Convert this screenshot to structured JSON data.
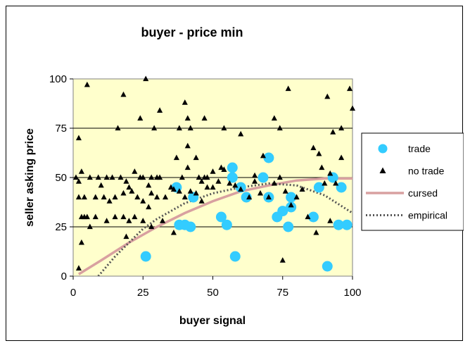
{
  "chart_data": {
    "type": "scatter",
    "title": "buyer - price min",
    "xlabel": "buyer signal",
    "ylabel": "seller asking price",
    "xlim": [
      0,
      100
    ],
    "ylim": [
      0,
      100
    ],
    "xticks": [
      "0",
      "25",
      "50",
      "75",
      "100"
    ],
    "yticks": [
      "0",
      "25",
      "50",
      "75",
      "100"
    ],
    "gridlines": "horizontal",
    "plot_background": "#FFFFCC",
    "legend": {
      "position": "right",
      "entries": [
        "trade",
        "no trade",
        "cursed",
        "empirical"
      ]
    },
    "series": [
      {
        "name": "trade",
        "kind": "points",
        "marker": "circle",
        "color": "#33CCFF",
        "points": [
          [
            26,
            10
          ],
          [
            37,
            45
          ],
          [
            38,
            26
          ],
          [
            40,
            26
          ],
          [
            42,
            25
          ],
          [
            43,
            40
          ],
          [
            53,
            30
          ],
          [
            55,
            26
          ],
          [
            57,
            55
          ],
          [
            57,
            50
          ],
          [
            58,
            10
          ],
          [
            60,
            45
          ],
          [
            62,
            40
          ],
          [
            68,
            50
          ],
          [
            70,
            60
          ],
          [
            70,
            40
          ],
          [
            73,
            30
          ],
          [
            75,
            33
          ],
          [
            77,
            25
          ],
          [
            78,
            35
          ],
          [
            78,
            40
          ],
          [
            86,
            30
          ],
          [
            88,
            45
          ],
          [
            91,
            5
          ],
          [
            93,
            50
          ],
          [
            95,
            26
          ],
          [
            96,
            45
          ],
          [
            98,
            26
          ]
        ]
      },
      {
        "name": "no trade",
        "kind": "points",
        "marker": "triangle",
        "color": "#000000",
        "points": [
          [
            5,
            97
          ],
          [
            18,
            92
          ],
          [
            26,
            100
          ],
          [
            31,
            84
          ],
          [
            41,
            80
          ],
          [
            40,
            88
          ],
          [
            47,
            80
          ],
          [
            77,
            95
          ],
          [
            91,
            91
          ],
          [
            99,
            95
          ],
          [
            100,
            85
          ],
          [
            2,
            70
          ],
          [
            16,
            75
          ],
          [
            24,
            80
          ],
          [
            29,
            75
          ],
          [
            38,
            75
          ],
          [
            41,
            66
          ],
          [
            42,
            75
          ],
          [
            54,
            75
          ],
          [
            60,
            72
          ],
          [
            72,
            80
          ],
          [
            74,
            75
          ],
          [
            93,
            73
          ],
          [
            96,
            75
          ],
          [
            1,
            50
          ],
          [
            2,
            48
          ],
          [
            3,
            53
          ],
          [
            6,
            50
          ],
          [
            9,
            50
          ],
          [
            12,
            50
          ],
          [
            14,
            50
          ],
          [
            17,
            50
          ],
          [
            19,
            48
          ],
          [
            22,
            53
          ],
          [
            24,
            50
          ],
          [
            25,
            50
          ],
          [
            27,
            46
          ],
          [
            28,
            50
          ],
          [
            30,
            50
          ],
          [
            31,
            50
          ],
          [
            37,
            60
          ],
          [
            39,
            50
          ],
          [
            41,
            55
          ],
          [
            44,
            60
          ],
          [
            45,
            50
          ],
          [
            46,
            48
          ],
          [
            47,
            50
          ],
          [
            48,
            50
          ],
          [
            50,
            53
          ],
          [
            53,
            55
          ],
          [
            2,
            40
          ],
          [
            4,
            40
          ],
          [
            5,
            30
          ],
          [
            8,
            40
          ],
          [
            10,
            46
          ],
          [
            11,
            40
          ],
          [
            13,
            38
          ],
          [
            15,
            40
          ],
          [
            18,
            42
          ],
          [
            20,
            45
          ],
          [
            21,
            43
          ],
          [
            23,
            40
          ],
          [
            25,
            38
          ],
          [
            27,
            35
          ],
          [
            28,
            42
          ],
          [
            30,
            40
          ],
          [
            33,
            40
          ],
          [
            35,
            45
          ],
          [
            36,
            44
          ],
          [
            38,
            43
          ],
          [
            40,
            40
          ],
          [
            42,
            43
          ],
          [
            44,
            42
          ],
          [
            46,
            38
          ],
          [
            48,
            45
          ],
          [
            50,
            45
          ],
          [
            52,
            48
          ],
          [
            56,
            47
          ],
          [
            58,
            46
          ],
          [
            60,
            44
          ],
          [
            63,
            40
          ],
          [
            65,
            48
          ],
          [
            67,
            42
          ],
          [
            70,
            40
          ],
          [
            72,
            47
          ],
          [
            74,
            50
          ],
          [
            76,
            43
          ],
          [
            78,
            36
          ],
          [
            80,
            40
          ],
          [
            82,
            44
          ],
          [
            84,
            30
          ],
          [
            86,
            65
          ],
          [
            88,
            62
          ],
          [
            90,
            47
          ],
          [
            92,
            52
          ],
          [
            94,
            47
          ],
          [
            3,
            30
          ],
          [
            4,
            30
          ],
          [
            6,
            25
          ],
          [
            8,
            30
          ],
          [
            12,
            28
          ],
          [
            15,
            30
          ],
          [
            18,
            30
          ],
          [
            20,
            28
          ],
          [
            22,
            30
          ],
          [
            25,
            28
          ],
          [
            28,
            25
          ],
          [
            32,
            28
          ],
          [
            36,
            22
          ],
          [
            19,
            20
          ],
          [
            2,
            4
          ],
          [
            3,
            17
          ],
          [
            75,
            8
          ],
          [
            87,
            22
          ],
          [
            89,
            55
          ],
          [
            92,
            28
          ],
          [
            96,
            60
          ],
          [
            65,
            51
          ],
          [
            68,
            61
          ],
          [
            54,
            54
          ]
        ]
      },
      {
        "name": "cursed",
        "kind": "line",
        "style": "solid",
        "color": "#D8A0A0",
        "points": [
          [
            2,
            1
          ],
          [
            10,
            8
          ],
          [
            20,
            17
          ],
          [
            30,
            25
          ],
          [
            40,
            32
          ],
          [
            50,
            38
          ],
          [
            60,
            43
          ],
          [
            70,
            46
          ],
          [
            80,
            48.5
          ],
          [
            90,
            49.5
          ],
          [
            100,
            49.5
          ]
        ]
      },
      {
        "name": "empirical",
        "kind": "line",
        "style": "dotted",
        "color": "#555555",
        "points": [
          [
            9,
            0
          ],
          [
            15,
            10
          ],
          [
            20,
            17
          ],
          [
            25,
            24
          ],
          [
            30,
            29
          ],
          [
            40,
            37
          ],
          [
            50,
            42
          ],
          [
            60,
            45
          ],
          [
            70,
            47
          ],
          [
            80,
            46
          ],
          [
            90,
            41
          ],
          [
            100,
            32
          ]
        ]
      }
    ]
  }
}
